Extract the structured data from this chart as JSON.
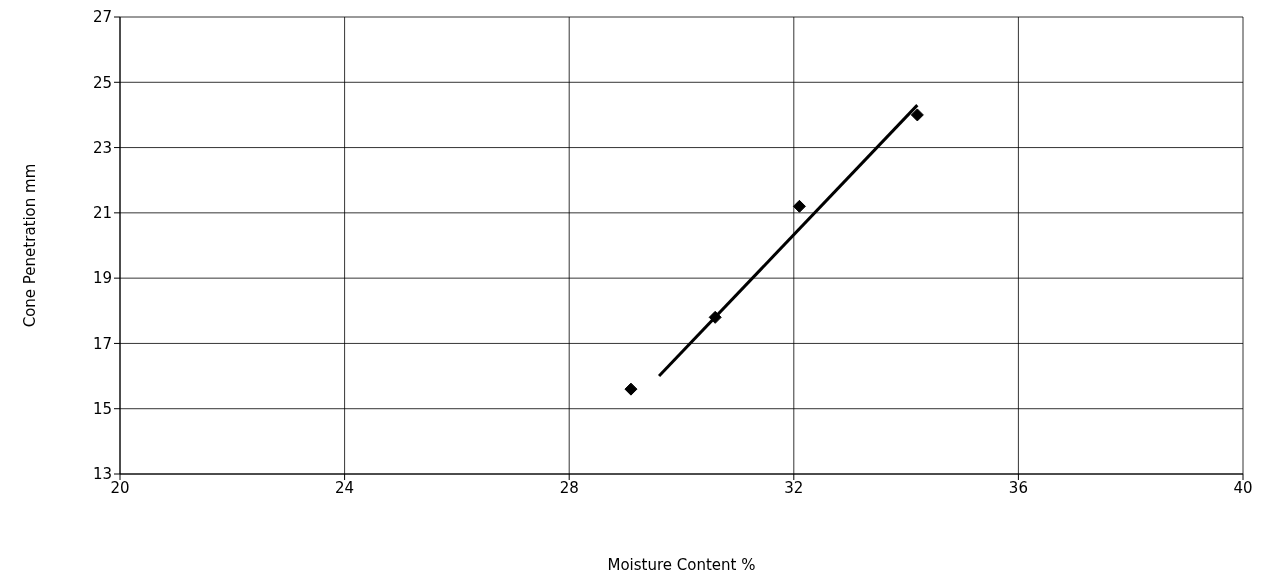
{
  "chart_data": {
    "type": "scatter",
    "xlabel": "Moisture Content  %",
    "ylabel": "Cone Penetration  mm",
    "series": [
      {
        "x": [
          29.1,
          30.6,
          32.1,
          34.2
        ],
        "values": [
          15.6,
          17.8,
          21.2,
          24.0
        ],
        "color": "#000000",
        "marker": "diamond"
      },
      {
        "type": "line",
        "x": [
          29.6,
          34.2
        ],
        "values": [
          16.0,
          24.3
        ],
        "color": "#000000",
        "marker": "none"
      }
    ],
    "xlim": [
      20,
      40
    ],
    "xticks": [
      20,
      24,
      28,
      32,
      36,
      40
    ],
    "ylim": [
      13,
      27
    ],
    "yticks": [
      13,
      15,
      17,
      19,
      21,
      23,
      25,
      27
    ],
    "grid": true
  }
}
